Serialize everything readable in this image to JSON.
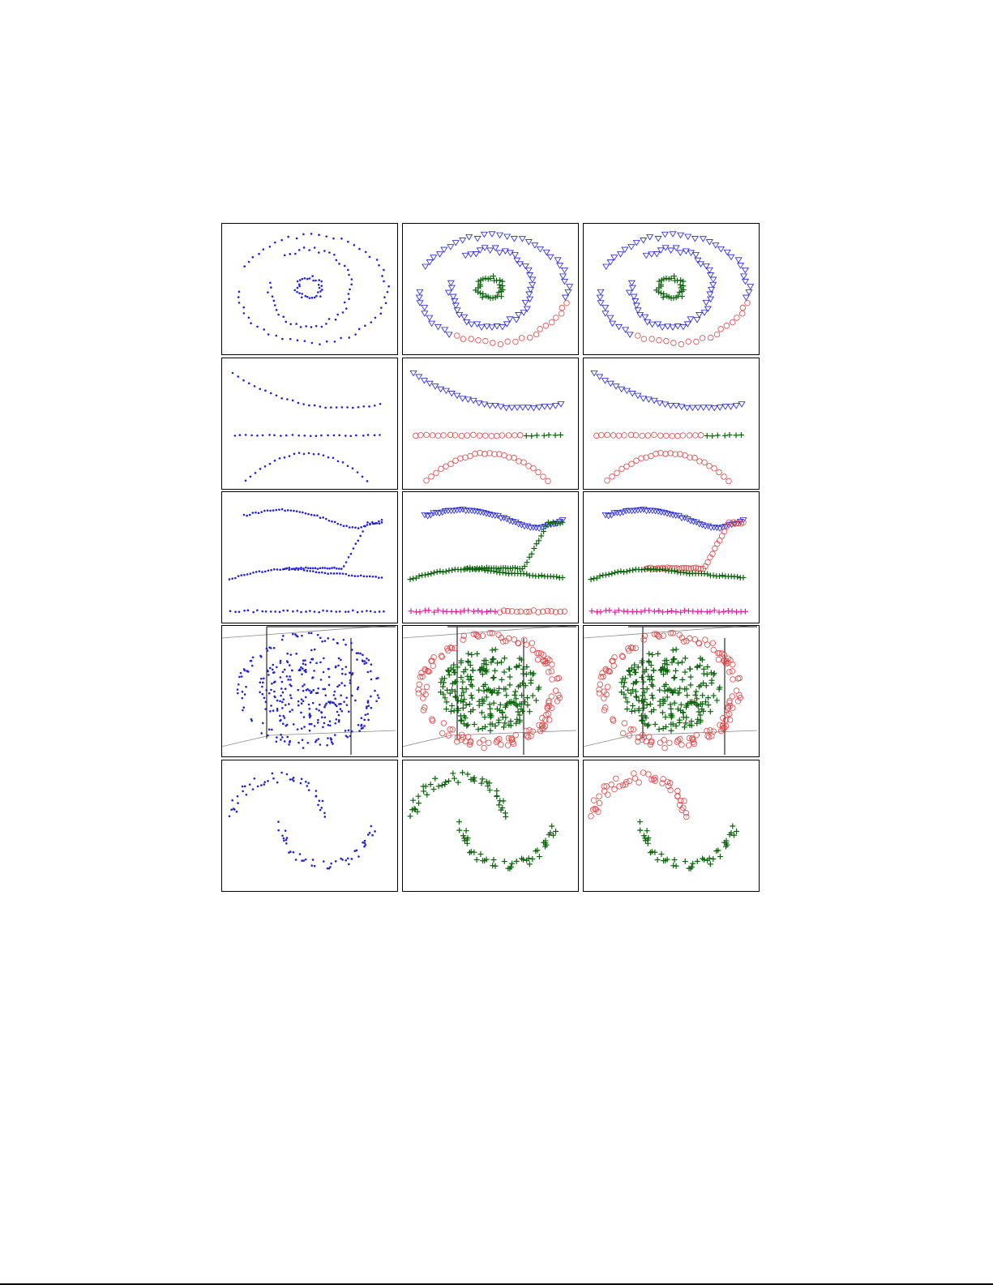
{
  "colors": {
    "blue": "#2020d8",
    "green": "#0a640a",
    "red": "#e04848",
    "magenta": "#e020a0",
    "frame": "#000000"
  },
  "chart_data": [
    {
      "type": "scatter",
      "name": "spirals",
      "columns": 3,
      "panels": [
        {
          "style": "original"
        },
        {
          "style": "clustering-a"
        },
        {
          "style": "clustering-b"
        }
      ]
    },
    {
      "type": "scatter",
      "name": "curves-and-line",
      "columns": 3,
      "panels": [
        {
          "style": "original"
        },
        {
          "style": "clustering-a"
        },
        {
          "style": "clustering-b"
        }
      ]
    },
    {
      "type": "scatter",
      "name": "wavy-curves",
      "columns": 3,
      "panels": [
        {
          "style": "original"
        },
        {
          "style": "clustering-a"
        },
        {
          "style": "clustering-b"
        }
      ]
    },
    {
      "type": "scatter",
      "name": "3d-sphere",
      "columns": 3,
      "projection": "3d-box",
      "panels": [
        {
          "style": "original"
        },
        {
          "style": "clustering-a"
        },
        {
          "style": "clustering-b"
        }
      ]
    },
    {
      "type": "scatter",
      "name": "two-moons",
      "columns": 3,
      "panels": [
        {
          "style": "original"
        },
        {
          "style": "clustering-a"
        },
        {
          "style": "clustering-b"
        }
      ]
    }
  ]
}
